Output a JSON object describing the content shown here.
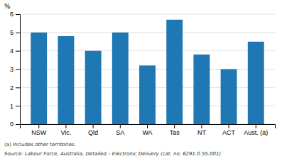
{
  "chart_data": {
    "type": "bar",
    "ylabel": "%",
    "categories": [
      "NSW",
      "Vic.",
      "Qld",
      "SA",
      "WA",
      "Tas",
      "NT",
      "ACT",
      "Aust. (a)"
    ],
    "values": [
      5.0,
      4.8,
      4.0,
      5.0,
      3.2,
      5.7,
      3.8,
      3.0,
      4.5
    ],
    "ylim": [
      0,
      6
    ],
    "yticks": [
      0,
      1,
      2,
      3,
      4,
      5,
      6
    ],
    "grid": true,
    "annotations": [
      "(a) Includes other territories.",
      "Source: Labour Force, Australia, Detailed – Electronic Delivery (cat. no. 6291.0.55.001)"
    ]
  }
}
